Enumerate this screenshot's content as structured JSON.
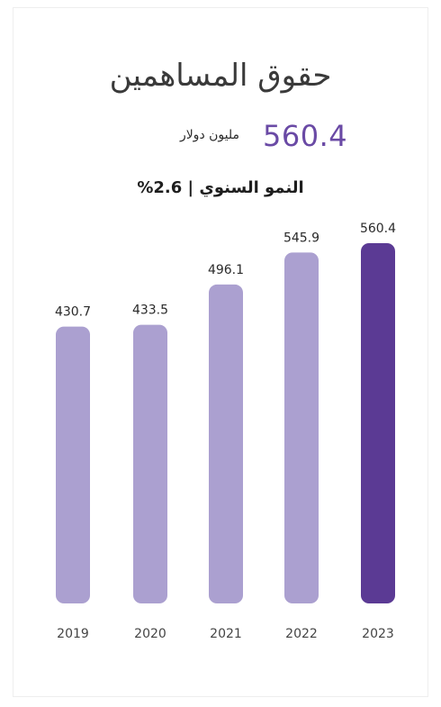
{
  "chart_data": {
    "type": "bar",
    "title": "حقوق المساهمين",
    "total_value": "560.4",
    "total_unit": "مليون دولار",
    "growth_text": "النمو السنوي | 2.6%",
    "categories": [
      "2019",
      "2020",
      "2021",
      "2022",
      "2023"
    ],
    "values": [
      430.7,
      433.5,
      496.1,
      545.9,
      560.4
    ],
    "value_labels": [
      "430.7",
      "433.5",
      "496.1",
      "545.9",
      "560.4"
    ],
    "ylim": [
      0,
      560.4
    ],
    "colors": {
      "bar": "#aba0d0",
      "highlight_bar": "#5b3a94",
      "total_value": "#6a4aa5"
    },
    "highlight_index": 4,
    "grid": false,
    "legend": "none"
  }
}
